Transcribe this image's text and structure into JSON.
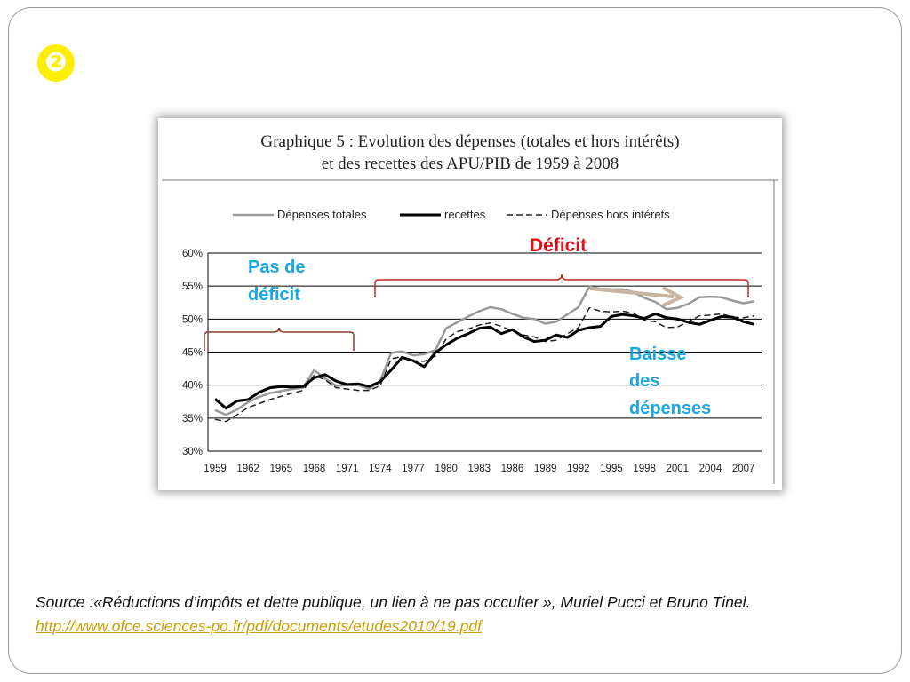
{
  "slide": {
    "bullet_icon": "❷",
    "source_text": "Source :«Réductions d’impôts et dette publique, un lien à ne pas occulter », Muriel Pucci et Bruno Tinel.",
    "source_link": "http://www.ofce.sciences-po.fr/pdf/documents/etudes2010/19.pdf"
  },
  "annotations": {
    "pas_de_deficit": [
      "Pas de",
      "déficit"
    ],
    "deficit": "Déficit",
    "baisse": [
      "Baisse",
      "des",
      "dépenses"
    ],
    "colors": {
      "blue": "#1aa6e2",
      "red": "#e0101a",
      "brace_brown": "#8b3a2a",
      "brace_red": "#cc2222",
      "arrow": "#c8b4a0"
    }
  },
  "chart_data": {
    "type": "line",
    "title": "Graphique 5 : Evolution des dépenses (totales et hors intérêts) et des recettes des APU/PIB de 1959 à 2008",
    "title_lines": [
      "Graphique 5 : Evolution des dépenses (totales et hors intérêts)",
      "et des recettes des APU/PIB de 1959 à 2008"
    ],
    "y_ticks": [
      "60%",
      "55%",
      "50%",
      "45%",
      "40%",
      "35%",
      "30%"
    ],
    "ylim": [
      30,
      60
    ],
    "x_ticks": [
      "1959",
      "1962",
      "1965",
      "1968",
      "1971",
      "1974",
      "1977",
      "1980",
      "1983",
      "1986",
      "1989",
      "1992",
      "1995",
      "1998",
      "2001",
      "2004",
      "2007"
    ],
    "x": [
      1959,
      1960,
      1961,
      1962,
      1963,
      1964,
      1965,
      1966,
      1967,
      1968,
      1969,
      1970,
      1971,
      1972,
      1973,
      1974,
      1975,
      1976,
      1977,
      1978,
      1979,
      1980,
      1981,
      1982,
      1983,
      1984,
      1985,
      1986,
      1987,
      1988,
      1989,
      1990,
      1991,
      1992,
      1993,
      1994,
      1995,
      1996,
      1997,
      1998,
      1999,
      2000,
      2001,
      2002,
      2003,
      2004,
      2005,
      2006,
      2007,
      2008
    ],
    "legend_position": "top",
    "grid": true,
    "series": [
      {
        "name": "Dépenses totales",
        "color": "#999999",
        "dash": "none",
        "width": 2.5,
        "values": [
          36.2,
          35.5,
          36.3,
          37.4,
          38.2,
          38.8,
          39.1,
          39.4,
          39.6,
          42.3,
          41.0,
          39.9,
          40.0,
          40.0,
          39.4,
          40.6,
          44.9,
          45.1,
          44.5,
          44.7,
          45.3,
          48.6,
          49.5,
          50.4,
          51.2,
          51.8,
          51.5,
          50.8,
          50.2,
          50.0,
          49.3,
          49.6,
          50.7,
          51.8,
          54.9,
          54.6,
          54.5,
          54.5,
          54.1,
          53.2,
          52.6,
          51.5,
          51.7,
          52.3,
          53.3,
          53.4,
          53.3,
          52.8,
          52.4,
          52.7
        ]
      },
      {
        "name": "recettes",
        "color": "#000000",
        "dash": "none",
        "width": 3,
        "values": [
          37.9,
          36.5,
          37.6,
          37.8,
          38.9,
          39.6,
          39.8,
          39.7,
          39.8,
          41.1,
          41.6,
          40.6,
          40.1,
          40.2,
          39.8,
          40.5,
          42.3,
          44.2,
          43.7,
          42.8,
          44.9,
          46.1,
          47.1,
          47.8,
          48.6,
          48.8,
          47.8,
          48.4,
          47.3,
          46.6,
          46.8,
          47.6,
          47.2,
          48.3,
          48.7,
          48.9,
          50.4,
          50.7,
          50.5,
          50.1,
          50.8,
          50.2,
          50.0,
          49.5,
          49.2,
          49.8,
          50.4,
          50.3,
          49.6,
          49.2
        ]
      },
      {
        "name": "Dépenses hors intérets",
        "color": "#222222",
        "dash": "7,4",
        "width": 1.5,
        "values": [
          34.8,
          34.5,
          35.5,
          36.6,
          37.2,
          37.8,
          38.3,
          38.8,
          39.2,
          41.5,
          40.8,
          39.6,
          39.4,
          39.2,
          39.2,
          39.9,
          44.0,
          44.3,
          43.7,
          43.6,
          44.4,
          47.0,
          48.1,
          48.5,
          49.1,
          49.4,
          48.9,
          48.2,
          47.6,
          47.3,
          46.6,
          46.8,
          47.8,
          48.7,
          51.7,
          51.2,
          51.1,
          51.2,
          50.9,
          49.8,
          49.6,
          48.7,
          48.8,
          49.6,
          50.5,
          50.6,
          50.8,
          50.3,
          50.2,
          50.5
        ]
      }
    ]
  }
}
